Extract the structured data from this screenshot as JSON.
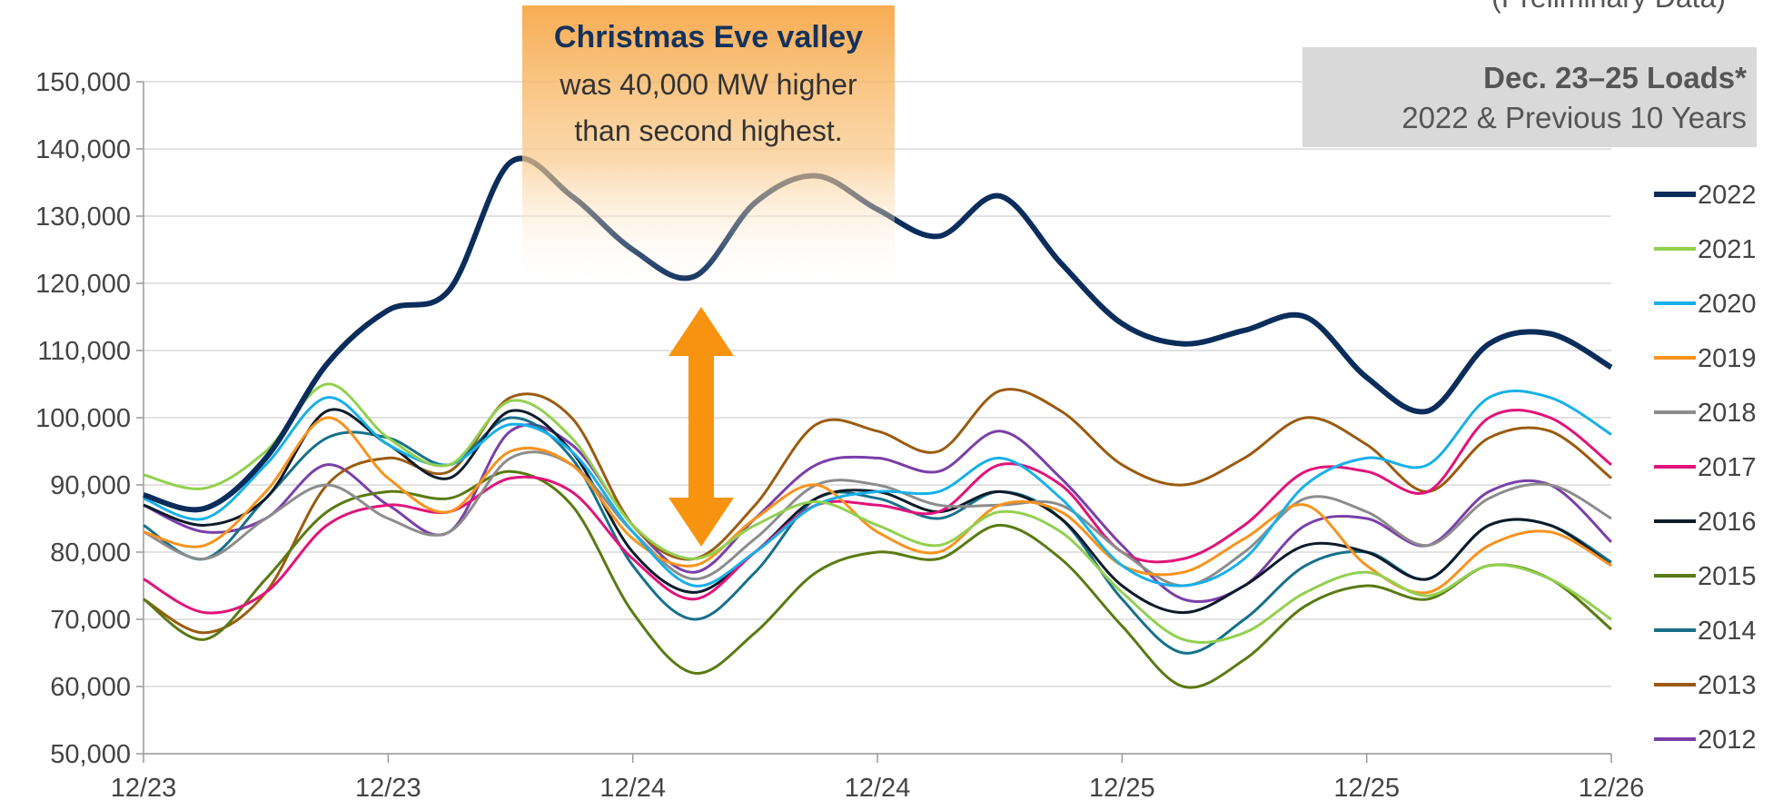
{
  "chart_data": {
    "type": "line",
    "note": "(Preliminary Data)",
    "box": {
      "title": "Dec. 23–25 Loads*",
      "subtitle": "2022 & Previous 10 Years"
    },
    "annotation": {
      "title": "Christmas Eve valley",
      "lines": [
        "was 40,000 MW higher",
        "than second highest."
      ]
    },
    "x": [
      0,
      3,
      6,
      9,
      12,
      15,
      18,
      21,
      24,
      27,
      30,
      33,
      36,
      39,
      42,
      45,
      48,
      51,
      54,
      57,
      60,
      63,
      66,
      69,
      72
    ],
    "xlim": [
      0,
      72
    ],
    "xticks": [
      {
        "value": 0,
        "label": "12/23"
      },
      {
        "value": 12,
        "label": "12/23"
      },
      {
        "value": 24,
        "label": "12/24"
      },
      {
        "value": 36,
        "label": "12/24"
      },
      {
        "value": 48,
        "label": "12/25"
      },
      {
        "value": 60,
        "label": "12/25"
      },
      {
        "value": 72,
        "label": "12/26"
      }
    ],
    "ylim": [
      50000,
      150000
    ],
    "yticks": [
      {
        "value": 50000,
        "label": "50,000"
      },
      {
        "value": 60000,
        "label": "60,000"
      },
      {
        "value": 70000,
        "label": "70,000"
      },
      {
        "value": 80000,
        "label": "80,000"
      },
      {
        "value": 90000,
        "label": "90,000"
      },
      {
        "value": 100000,
        "label": "100,000"
      },
      {
        "value": 110000,
        "label": "110,000"
      },
      {
        "value": 120000,
        "label": "120,000"
      },
      {
        "value": 130000,
        "label": "130,000"
      },
      {
        "value": 140000,
        "label": "140,000"
      },
      {
        "value": 150000,
        "label": "150,000"
      }
    ],
    "grid": true,
    "legend": "right",
    "series": [
      {
        "name": "2022",
        "color": "#0b2d5b",
        "values": [
          88500,
          86500,
          94000,
          108000,
          116000,
          119000,
          138000,
          133000,
          125000,
          121000,
          132000,
          136000,
          131000,
          127000,
          133000,
          123000,
          114000,
          111000,
          113000,
          115000,
          106000,
          101000,
          111000,
          112500,
          107500
        ]
      },
      {
        "name": "2021",
        "color": "#92d050",
        "values": [
          91500,
          89500,
          95000,
          105000,
          97000,
          93000,
          102500,
          97000,
          84000,
          79000,
          84000,
          87500,
          84000,
          81000,
          86000,
          83000,
          74000,
          67000,
          68000,
          74000,
          77000,
          73500,
          78000,
          76000,
          70000
        ]
      },
      {
        "name": "2020",
        "color": "#17b0e8",
        "values": [
          88000,
          85000,
          93000,
          103000,
          96000,
          93000,
          99000,
          95000,
          83000,
          75000,
          80000,
          87000,
          89000,
          89000,
          94000,
          88000,
          78000,
          75000,
          79000,
          90000,
          94000,
          93000,
          103000,
          103000,
          97500
        ]
      },
      {
        "name": "2019",
        "color": "#f7931e",
        "values": [
          83000,
          81000,
          89000,
          100000,
          91000,
          86000,
          95000,
          93000,
          82000,
          78000,
          85000,
          90000,
          83000,
          80000,
          87000,
          86000,
          78000,
          77000,
          82000,
          87000,
          78000,
          74000,
          81000,
          83000,
          78000
        ]
      },
      {
        "name": "2018",
        "color": "#8c8c8c",
        "values": [
          83000,
          79000,
          85000,
          90000,
          85000,
          83000,
          94000,
          93000,
          83000,
          76000,
          82000,
          90000,
          90000,
          87000,
          87000,
          87000,
          80000,
          75000,
          80000,
          88000,
          86000,
          81000,
          88000,
          90000,
          85000
        ]
      },
      {
        "name": "2017",
        "color": "#e0147a",
        "values": [
          76000,
          71000,
          74000,
          84000,
          87000,
          86000,
          91000,
          89000,
          79000,
          73000,
          80000,
          87000,
          87000,
          86000,
          93000,
          90000,
          80000,
          79000,
          84000,
          92000,
          92000,
          89000,
          100000,
          100000,
          93000
        ]
      },
      {
        "name": "2016",
        "color": "#0d1b2a",
        "values": [
          87000,
          84000,
          88000,
          101000,
          96000,
          91000,
          101000,
          95000,
          80000,
          74000,
          80000,
          88000,
          89000,
          86000,
          89000,
          85000,
          75000,
          71000,
          75000,
          81000,
          80000,
          76000,
          84000,
          84000,
          78000
        ]
      },
      {
        "name": "2015",
        "color": "#5a7a12",
        "values": [
          73000,
          67000,
          76000,
          86000,
          89000,
          88000,
          92000,
          87000,
          71000,
          62000,
          68000,
          77000,
          80000,
          79000,
          84000,
          79000,
          69000,
          60000,
          64000,
          72000,
          75000,
          73000,
          78000,
          76000,
          68500
        ]
      },
      {
        "name": "2014",
        "color": "#17708a",
        "values": [
          84000,
          79000,
          88000,
          97000,
          97000,
          93000,
          100000,
          94000,
          78000,
          70000,
          77000,
          88000,
          88000,
          85000,
          89000,
          85000,
          73000,
          65000,
          70000,
          78000,
          80000,
          76000,
          84000,
          84000,
          78500
        ]
      },
      {
        "name": "2013",
        "color": "#9a5b10",
        "values": [
          73000,
          68000,
          74000,
          90000,
          94000,
          92000,
          103000,
          100000,
          84000,
          79000,
          87000,
          99000,
          98000,
          95000,
          104000,
          101000,
          93000,
          90000,
          94000,
          100000,
          96000,
          89000,
          97000,
          98000,
          91000
        ]
      },
      {
        "name": "2012",
        "color": "#7a3fa8",
        "values": [
          87000,
          83000,
          85000,
          93000,
          87000,
          83000,
          98000,
          96000,
          84000,
          77000,
          85000,
          93000,
          94000,
          92000,
          98000,
          91000,
          81000,
          73000,
          75000,
          84000,
          85000,
          81000,
          89000,
          90000,
          81500
        ]
      }
    ]
  }
}
